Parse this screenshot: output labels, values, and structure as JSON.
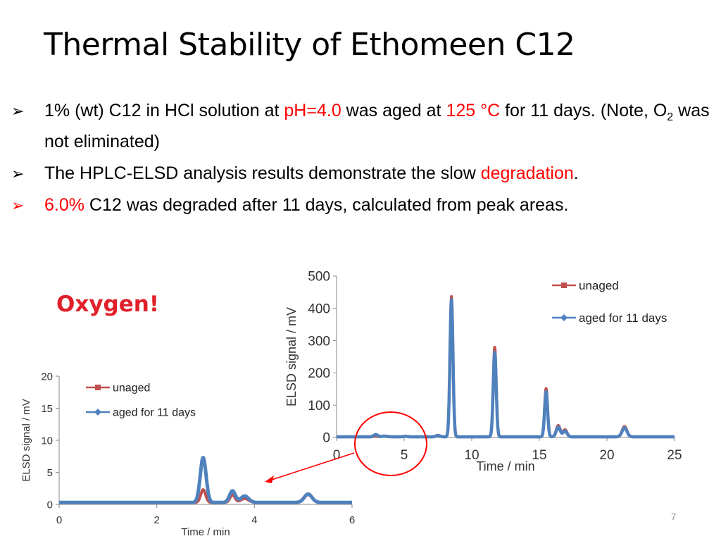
{
  "slide": {
    "title": "Thermal Stability of Ethomeen C12",
    "bullets": [
      {
        "parts": [
          {
            "t": "1% (wt) C12 in HCl solution at ",
            "red": false
          },
          {
            "t": "pH=4.0",
            "red": true
          },
          {
            "t": " was aged at ",
            "red": false
          },
          {
            "t": "125 °C",
            "red": true
          },
          {
            "t": " for 11 days. (Note, O",
            "red": false
          },
          {
            "t": "2",
            "red": false,
            "sub": true
          },
          {
            "t": " was not eliminated)",
            "red": false
          }
        ]
      },
      {
        "parts": [
          {
            "t": "The HPLC-ELSD analysis results demonstrate the slow ",
            "red": false
          },
          {
            "t": "degradation",
            "red": true
          },
          {
            "t": ".",
            "red": false
          }
        ]
      },
      {
        "red_marker": true,
        "parts": [
          {
            "t": "6.0%",
            "red": true
          },
          {
            "t": " C12 was degraded after 11 days, calculated from peak areas.",
            "red": false
          }
        ]
      }
    ],
    "callout": "Oxygen!",
    "page_number": "7",
    "colors": {
      "unaged": "#c0504d",
      "aged": "#4f81bd",
      "circle": "#ff0000",
      "arrow": "#ff0000"
    }
  },
  "chart_data": [
    {
      "type": "line",
      "xlabel": "Time / min",
      "ylabel": "ELSD signal  / mV",
      "xlim": [
        0,
        25
      ],
      "ylim": [
        0,
        500
      ],
      "xticks": [
        0,
        5,
        10,
        15,
        20,
        25
      ],
      "yticks": [
        0,
        100,
        200,
        300,
        400,
        500
      ],
      "legend": "top-right",
      "series": [
        {
          "name": "unaged",
          "baseline": 2,
          "peaks": [
            [
              2.9,
              2,
              0.15
            ],
            [
              3.5,
              1.5,
              0.15
            ],
            [
              5.1,
              1.5,
              0.15
            ],
            [
              7.5,
              5,
              0.15
            ],
            [
              8.5,
              435,
              0.11
            ],
            [
              11.7,
              278,
              0.11
            ],
            [
              15.5,
              150,
              0.11
            ],
            [
              16.4,
              35,
              0.15
            ],
            [
              16.9,
              22,
              0.15
            ],
            [
              21.3,
              32,
              0.18
            ]
          ]
        },
        {
          "name": "aged for 11 days",
          "baseline": 2,
          "peaks": [
            [
              2.9,
              7,
              0.15
            ],
            [
              3.5,
              2,
              0.15
            ],
            [
              3.8,
              1,
              0.15
            ],
            [
              5.1,
              1.5,
              0.15
            ],
            [
              7.5,
              4,
              0.15
            ],
            [
              8.5,
              425,
              0.11
            ],
            [
              11.7,
              262,
              0.11
            ],
            [
              15.5,
              140,
              0.11
            ],
            [
              16.4,
              30,
              0.15
            ],
            [
              16.9,
              18,
              0.15
            ],
            [
              21.3,
              28,
              0.18
            ]
          ]
        }
      ]
    },
    {
      "type": "line",
      "xlabel": "Time / min",
      "ylabel": "ELSD signal  / mV",
      "xlim": [
        0,
        6
      ],
      "ylim": [
        0,
        20
      ],
      "xticks": [
        0,
        2,
        4,
        6
      ],
      "yticks": [
        0,
        5,
        10,
        15,
        20
      ],
      "legend": "top-left",
      "series": [
        {
          "name": "unaged",
          "baseline": 0.3,
          "peaks": [
            [
              2.95,
              2.0,
              0.05
            ],
            [
              3.55,
              1.2,
              0.05
            ],
            [
              3.8,
              0.6,
              0.08
            ],
            [
              5.1,
              1.2,
              0.08
            ]
          ]
        },
        {
          "name": "aged for 11 days",
          "baseline": 0.3,
          "peaks": [
            [
              2.95,
              7.0,
              0.06
            ],
            [
              3.55,
              1.8,
              0.06
            ],
            [
              3.8,
              1.0,
              0.08
            ],
            [
              5.1,
              1.3,
              0.08
            ]
          ]
        }
      ]
    }
  ]
}
